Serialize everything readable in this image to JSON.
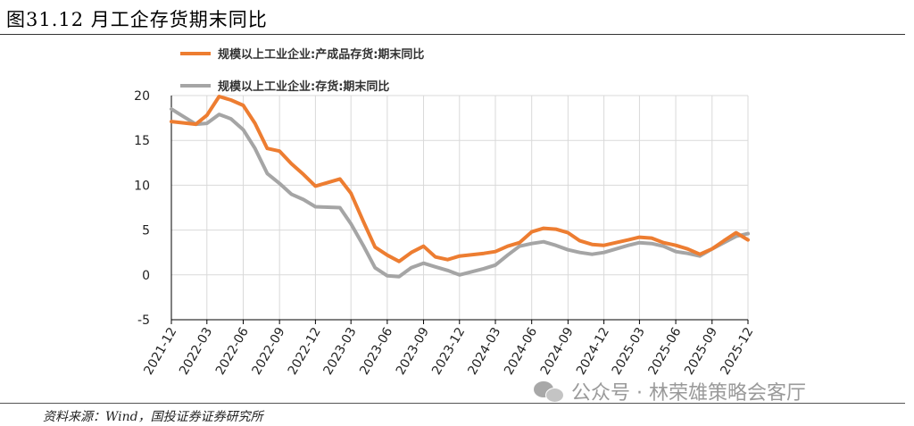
{
  "title": "图31.12 月工企存货期末同比",
  "source": "资料来源：Wind，国投证券证券研究所",
  "watermark": "公众号 · 林荣雄策略会客厅",
  "chart_data": {
    "type": "line",
    "title": "",
    "xlabel": "",
    "ylabel": "",
    "ylim": [
      -5,
      20
    ],
    "yticks": [
      -5,
      0,
      5,
      10,
      15,
      20
    ],
    "grid": true,
    "legend_position": "top-left",
    "x_tick_labels": [
      "2021-12",
      "2022-03",
      "2022-06",
      "2022-09",
      "2022-12",
      "2023-03",
      "2023-06",
      "2023-09",
      "2023-12",
      "2024-03",
      "2024-06",
      "2024-09",
      "2024-12",
      "2025-03",
      "2025-06",
      "2025-09",
      "2025-12"
    ],
    "x": [
      "2021-12",
      "2022-02",
      "2022-03",
      "2022-04",
      "2022-05",
      "2022-06",
      "2022-07",
      "2022-08",
      "2022-09",
      "2022-10",
      "2022-11",
      "2022-12",
      "2023-02",
      "2023-03",
      "2023-04",
      "2023-05",
      "2023-06",
      "2023-07",
      "2023-08",
      "2023-09",
      "2023-10",
      "2023-11",
      "2023-12",
      "2024-02",
      "2024-03",
      "2024-04",
      "2024-05",
      "2024-06",
      "2024-07",
      "2024-08",
      "2024-09",
      "2024-10",
      "2024-11",
      "2024-12",
      "2025-02",
      "2025-03",
      "2025-04",
      "2025-05",
      "2025-06",
      "2025-07",
      "2025-08",
      "2025-09",
      "2025-10",
      "2025-11",
      "2025-12"
    ],
    "series": [
      {
        "name": "规模以上工业企业:产成品存货:期末同比",
        "color": "#ED7D31",
        "values": [
          17.1,
          16.8,
          17.8,
          19.9,
          19.5,
          18.9,
          16.9,
          14.1,
          13.8,
          12.4,
          11.2,
          9.9,
          10.7,
          9.1,
          6.0,
          3.1,
          2.2,
          1.5,
          2.5,
          3.2,
          2.0,
          1.7,
          2.1,
          2.4,
          2.6,
          3.2,
          3.6,
          4.8,
          5.2,
          5.1,
          4.7,
          3.8,
          3.4,
          3.3,
          3.9,
          4.2,
          4.1,
          3.6,
          3.3,
          2.9,
          2.3,
          2.9,
          3.8,
          4.7,
          3.9
        ]
      },
      {
        "name": "规模以上工业企业:存货:期末同比",
        "color": "#A5A5A5",
        "values": [
          18.5,
          16.8,
          16.9,
          17.9,
          17.4,
          16.2,
          14.1,
          11.3,
          10.2,
          9.0,
          8.4,
          7.6,
          7.5,
          5.7,
          3.3,
          0.8,
          -0.1,
          -0.2,
          0.8,
          1.3,
          0.9,
          0.5,
          0.0,
          0.7,
          1.1,
          2.2,
          3.2,
          3.5,
          3.7,
          3.3,
          2.8,
          2.5,
          2.3,
          2.5,
          3.3,
          3.6,
          3.5,
          3.2,
          2.6,
          2.4,
          2.1,
          2.9,
          3.6,
          4.3,
          4.6
        ]
      }
    ]
  }
}
